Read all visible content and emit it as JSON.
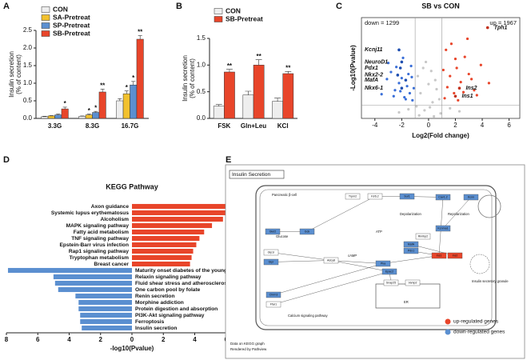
{
  "panel_letters": [
    "A",
    "B",
    "C",
    "D",
    "E"
  ],
  "chart_data": [
    {
      "type": "bar",
      "ylabel": [
        "Insulin secretion",
        "(% of content)"
      ],
      "categories": [
        "3.3G",
        "8.3G",
        "16.7G"
      ],
      "ylim": [
        0,
        2.5
      ],
      "yticks": [
        {
          "value": 0,
          "label": "0.0"
        },
        0.5,
        {
          "value": 1,
          "label": "1.0"
        },
        1.5,
        {
          "value": 2,
          "label": "2.0"
        },
        2.5
      ],
      "legend": "upper-left",
      "series": [
        {
          "name": "CON",
          "color": "#eeeeee",
          "values": [
            0.05,
            0.06,
            0.5
          ],
          "errors": [
            0.01,
            0.01,
            0.06
          ]
        },
        {
          "name": "SA-Pretreat",
          "color": "#f2c12e",
          "values": [
            0.07,
            0.1,
            0.7
          ],
          "errors": [
            0.01,
            0.02,
            0.08
          ],
          "markers": [
            null,
            "*",
            "*"
          ]
        },
        {
          "name": "SP-Pretreat",
          "color": "#5b8fd0",
          "values": [
            0.1,
            0.17,
            0.95
          ],
          "errors": [
            0.02,
            0.03,
            0.1
          ],
          "markers": [
            null,
            "*",
            "*"
          ]
        },
        {
          "name": "SB-Pretreat",
          "color": "#e8452a",
          "values": [
            0.27,
            0.75,
            2.25
          ],
          "errors": [
            0.05,
            0.08,
            0.1
          ],
          "markers": [
            "*",
            "**",
            "**"
          ]
        }
      ]
    },
    {
      "type": "bar",
      "ylabel": [
        "Insulin secretion",
        "(% of content)"
      ],
      "categories": [
        "FSK",
        "Gln+Leu",
        "KCl"
      ],
      "ylim": [
        0,
        1.5
      ],
      "yticks": [
        {
          "value": 0,
          "label": "0.0"
        },
        0.5,
        {
          "value": 1,
          "label": "1.0"
        },
        1.5
      ],
      "legend": "upper-left",
      "series": [
        {
          "name": "CON",
          "color": "#eeeeee",
          "values": [
            0.23,
            0.44,
            0.32
          ],
          "errors": [
            0.03,
            0.07,
            0.06
          ]
        },
        {
          "name": "SB-Pretreat",
          "color": "#e8452a",
          "values": [
            0.87,
            1.0,
            0.84
          ],
          "errors": [
            0.05,
            0.1,
            0.04
          ],
          "markers": [
            "**",
            "**",
            "**"
          ]
        }
      ]
    },
    {
      "type": "scatter",
      "title": "SB vs CON",
      "xlabel": "Log2(Fold change)",
      "ylabel": "-Log10(Pvalue)",
      "xlim": [
        -5,
        6.8
      ],
      "ylim": [
        0,
        10
      ],
      "xticks": [
        -4,
        -2,
        0,
        2,
        4,
        6
      ],
      "thresholds": {
        "x": [
          -1,
          1
        ],
        "y": 1.3
      },
      "annotations": [
        "down = 1299",
        "up = 1967"
      ],
      "series": [
        {
          "color": "#c8c8c8",
          "x": [
            -0.9,
            -0.6,
            -0.3,
            0,
            0.3,
            0.6,
            0.9,
            -0.8,
            -0.4,
            0.2,
            0.5,
            0.8,
            -0.7,
            0.1,
            -1.5,
            -2.2,
            1.6,
            2.3,
            -0.2,
            0.4
          ],
          "y": [
            1.2,
            2.5,
            0.8,
            3.4,
            1.6,
            2.9,
            0.5,
            4.2,
            5.0,
            4.7,
            3.8,
            1.9,
            0.3,
            1.1,
            0.9,
            0.6,
            1.0,
            0.7,
            5.6,
            0.2
          ]
        },
        {
          "color": "#3a6fd8",
          "x": [
            -1.2,
            -1.4,
            -1.6,
            -1.8,
            -2.0,
            -2.2,
            -2.5,
            -2.8,
            -3.1,
            -3.5,
            -1.3,
            -1.5,
            -1.9,
            -2.4,
            -1.1,
            -1.7,
            -2.6,
            -3.0,
            -1.25,
            -2.1
          ],
          "y": [
            1.8,
            2.5,
            3.2,
            2.1,
            4.0,
            3.5,
            2.8,
            4.6,
            3.9,
            2.4,
            5.2,
            4.4,
            6.0,
            5.1,
            3.0,
            1.9,
            2.2,
            5.5,
            4.1,
            2.7
          ]
        },
        {
          "color": "#e8452a",
          "x": [
            1.2,
            1.4,
            1.6,
            1.9,
            2.1,
            2.4,
            2.7,
            3.0,
            3.4,
            3.9,
            4.5,
            1.3,
            1.7,
            2.2,
            2.9,
            3.6,
            1.1,
            2.0,
            2.6,
            3.2
          ],
          "y": [
            2.0,
            3.1,
            4.2,
            2.5,
            5.0,
            3.6,
            6.1,
            4.4,
            2.8,
            5.3,
            3.5,
            6.8,
            7.4,
            1.8,
            7.9,
            2.3,
            4.8,
            5.9,
            2.6,
            3.9
          ]
        }
      ],
      "genes": [
        {
          "label": "Tph1",
          "x": 4.4,
          "y": 9.0
        },
        {
          "label": "Kcnj11",
          "x": -2.2,
          "y": 6.8
        },
        {
          "label": "NeuroD1",
          "x": -2.0,
          "y": 5.6
        },
        {
          "label": "Pdx1",
          "x": -2.1,
          "y": 5.0
        },
        {
          "label": "Nkx2-2",
          "x": -2.3,
          "y": 4.3
        },
        {
          "label": "MafA",
          "x": -1.7,
          "y": 3.8
        },
        {
          "label": "Nkx6-1",
          "x": -2.0,
          "y": 3.0
        },
        {
          "label": "Ins2",
          "x": 2.3,
          "y": 3.0
        },
        {
          "label": "Ins1",
          "x": 2.0,
          "y": 2.2
        }
      ]
    },
    {
      "type": "diverging_bar",
      "title": "KEGG Pathway",
      "xlabel": "-log10(Pvalue)",
      "xlim": [
        -8,
        8
      ],
      "xticks": [
        {
          "value": -8,
          "label": "8"
        },
        {
          "value": -6,
          "label": "6"
        },
        {
          "value": -4,
          "label": "4"
        },
        {
          "value": -2,
          "label": "2"
        },
        0,
        2,
        4,
        6,
        8
      ],
      "series": [
        {
          "side": "right",
          "color": "#e8452a",
          "categories": [
            "Axon guidance",
            "Systemic lupus erythematosus",
            "Alcoholism",
            "MAPK signaling pathway",
            "Fatty acid metabolism",
            "TNF signaling pathway",
            "Epstein-Barr virus infection",
            "Rap1 signaling pathway",
            "Tryptophan metabolism",
            "Breast cancer"
          ],
          "values": [
            7.5,
            6.6,
            5.8,
            5.1,
            4.6,
            4.3,
            4.1,
            3.9,
            3.8,
            3.7
          ]
        },
        {
          "side": "left",
          "color": "#5b8fd0",
          "categories": [
            "Maturity onset diabetes of the young",
            "Relaxin signaling pathway",
            "Fluid shear stress and atherosclerosis",
            "One carbon pool by folate",
            "Renin secretion",
            "Morphine addiction",
            "Protein digestion and absorption",
            "PI3K-Akt signaling pathway",
            "Ferroptosis",
            "Insulin secretion"
          ],
          "values": [
            7.9,
            5.0,
            4.9,
            4.7,
            3.6,
            3.4,
            3.4,
            3.3,
            3.3,
            3.2
          ]
        }
      ]
    }
  ],
  "diagram": {
    "title": "Insulin Secretion",
    "colors": {
      "up": "#e8452a",
      "down": "#5b8fd0"
    },
    "legend": {
      "up": "up-regulated genes",
      "down": "down-regulated genes"
    },
    "labels": [
      "Pancreatic β-cell",
      "Glucose",
      "Depolarization",
      "Repolarization",
      "cAMP",
      "ATP",
      "ER",
      "Calcium signaling pathway",
      "Insulin secretory granule"
    ],
    "nodes": [
      {
        "label": "Glut2",
        "reg": "down"
      },
      {
        "label": "Gck",
        "reg": "down"
      },
      {
        "label": "Glp1r",
        "reg": null
      },
      {
        "label": "Gipr",
        "reg": "down"
      },
      {
        "label": "Adcy8",
        "reg": null
      },
      {
        "label": "Pka",
        "reg": "down"
      },
      {
        "label": "Epac2",
        "reg": "down"
      },
      {
        "label": "Kir6.2",
        "reg": null
      },
      {
        "label": "Sur1",
        "reg": "down"
      },
      {
        "label": "Cav1.2",
        "reg": "down"
      },
      {
        "label": "Kcnn",
        "reg": "down"
      },
      {
        "label": "Kcnma1",
        "reg": "down"
      },
      {
        "label": "Ins1",
        "reg": "up"
      },
      {
        "label": "Ins2",
        "reg": "up"
      },
      {
        "label": "Pdx1",
        "reg": "down"
      },
      {
        "label": "MafA",
        "reg": "down"
      },
      {
        "label": "Trpm2",
        "reg": null
      },
      {
        "label": "Chrm3",
        "reg": "down"
      },
      {
        "label": "Ffar1",
        "reg": null
      },
      {
        "label": "Rimbp2",
        "reg": null
      },
      {
        "label": "Snap25",
        "reg": null
      },
      {
        "label": "Vamp2",
        "reg": null
      }
    ],
    "footer": [
      "Data on KEGG graph",
      "Rendered by Pathview"
    ]
  }
}
